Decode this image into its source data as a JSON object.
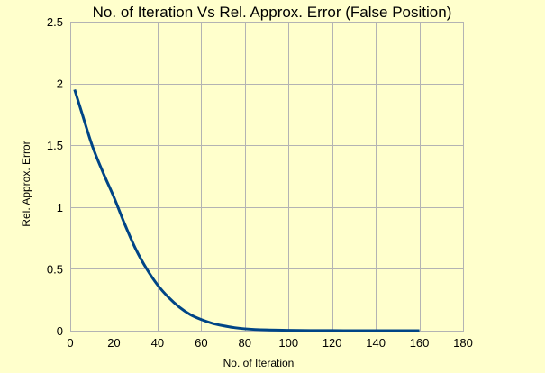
{
  "chart_data": {
    "type": "line",
    "title": "No. of Iteration Vs Rel. Approx. Error (False Position)",
    "xlabel": "No. of Iteration",
    "ylabel": "Rel. Approx. Error",
    "xlim": [
      0,
      180
    ],
    "ylim": [
      0,
      2.5
    ],
    "xticks": [
      0,
      20,
      40,
      60,
      80,
      100,
      120,
      140,
      160,
      180
    ],
    "yticks": [
      0,
      0.5,
      1,
      1.5,
      2,
      2.5
    ],
    "ytick_labels": [
      "0",
      "0.5",
      "1",
      "1.5",
      "2",
      "2.5"
    ],
    "grid": true,
    "legend": "none",
    "line_color": "#004586",
    "background_color": "#ffffcc",
    "series": [
      {
        "x": [
          2,
          5,
          10,
          15,
          20,
          25,
          30,
          35,
          40,
          45,
          50,
          55,
          60,
          65,
          70,
          75,
          80,
          90,
          100,
          110,
          120,
          130,
          140,
          150,
          160
        ],
        "values": [
          1.95,
          1.78,
          1.5,
          1.28,
          1.08,
          0.86,
          0.66,
          0.5,
          0.37,
          0.27,
          0.19,
          0.13,
          0.09,
          0.06,
          0.04,
          0.025,
          0.015,
          0.006,
          0.003,
          0.001,
          0.0005,
          0.0003,
          0.0002,
          0.0001,
          0.0001
        ]
      }
    ]
  }
}
